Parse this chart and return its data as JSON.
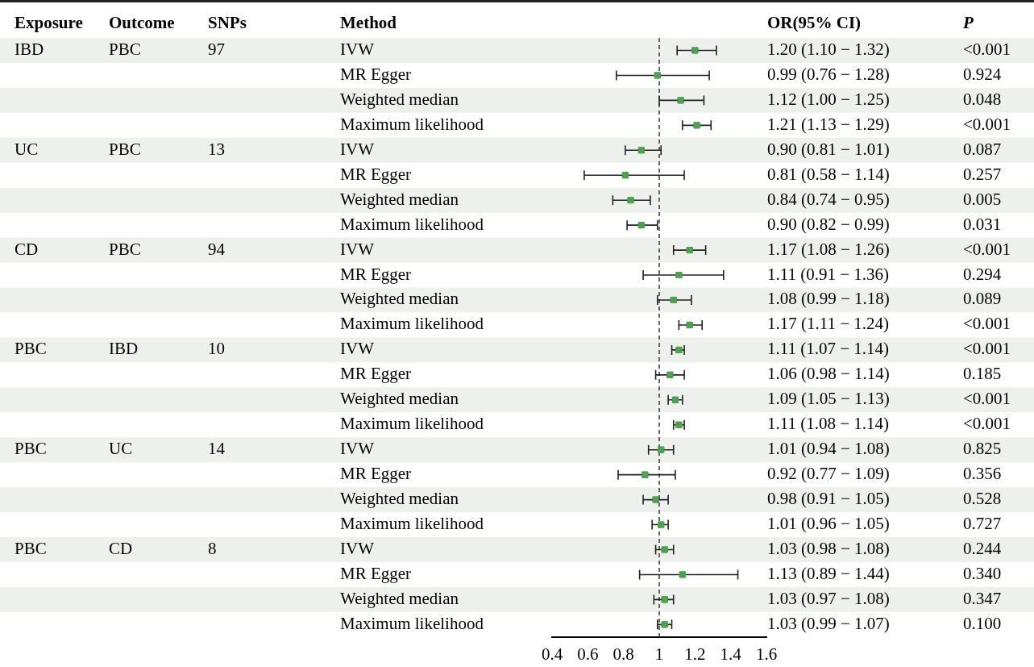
{
  "chart_data": {
    "type": "scatter",
    "orientation": "horizontal",
    "ylabel": "Method",
    "marker": "square",
    "categories": [
      "IVW",
      "MR Egger",
      "Weighted median",
      "Maximum likelihood",
      "IVW",
      "MR Egger",
      "Weighted median",
      "Maximum likelihood",
      "IVW",
      "MR Egger",
      "Weighted median",
      "Maximum likelihood",
      "IVW",
      "MR Egger",
      "Weighted median",
      "Maximum likelihood",
      "IVW",
      "MR Egger",
      "Weighted median",
      "Maximum likelihood",
      "IVW",
      "MR Egger",
      "Weighted median",
      "Maximum likelihood"
    ],
    "series": [
      {
        "color": "#4ea24e",
        "values": [
          1.2,
          0.99,
          1.12,
          1.21,
          0.9,
          0.81,
          0.84,
          0.9,
          1.17,
          1.11,
          1.08,
          1.17,
          1.11,
          1.06,
          1.09,
          1.11,
          1.01,
          0.92,
          0.98,
          1.01,
          1.03,
          1.13,
          1.03,
          1.03
        ],
        "errors": [
          [
            1.1,
            1.32
          ],
          [
            0.76,
            1.28
          ],
          [
            1.0,
            1.25
          ],
          [
            1.13,
            1.29
          ],
          [
            0.81,
            1.01
          ],
          [
            0.58,
            1.14
          ],
          [
            0.74,
            0.95
          ],
          [
            0.82,
            0.99
          ],
          [
            1.08,
            1.26
          ],
          [
            0.91,
            1.36
          ],
          [
            0.99,
            1.18
          ],
          [
            1.11,
            1.24
          ],
          [
            1.07,
            1.14
          ],
          [
            0.98,
            1.14
          ],
          [
            1.05,
            1.13
          ],
          [
            1.08,
            1.14
          ],
          [
            0.94,
            1.08
          ],
          [
            0.77,
            1.09
          ],
          [
            0.91,
            1.05
          ],
          [
            0.96,
            1.05
          ],
          [
            0.98,
            1.08
          ],
          [
            0.89,
            1.44
          ],
          [
            0.97,
            1.08
          ],
          [
            0.99,
            1.07
          ]
        ],
        "value_labels": [
          "1.20 (1.10 − 1.32)",
          "0.99 (0.76 − 1.28)",
          "1.12 (1.00 − 1.25)",
          "1.21 (1.13 − 1.29)",
          "0.90 (0.81 − 1.01)",
          "0.81 (0.58 − 1.14)",
          "0.84 (0.74 − 0.95)",
          "0.90 (0.82 − 0.99)",
          "1.17 (1.08 − 1.26)",
          "1.11 (0.91 − 1.36)",
          "1.08 (0.99 − 1.18)",
          "1.17 (1.11 − 1.24)",
          "1.11 (1.07 − 1.14)",
          "1.06 (0.98 − 1.14)",
          "1.09 (1.05 − 1.13)",
          "1.11 (1.08 − 1.14)",
          "1.01 (0.94 − 1.08)",
          "0.92 (0.77 − 1.09)",
          "0.98 (0.91 − 1.05)",
          "1.01 (0.96 − 1.05)",
          "1.03 (0.98 − 1.08)",
          "1.13 (0.89 − 1.44)",
          "1.03 (0.97 − 1.08)",
          "1.03 (0.99 − 1.07)"
        ]
      }
    ],
    "xlim": [
      0.4,
      1.6
    ],
    "xticks": [
      0.4,
      0.6,
      0.8,
      1,
      1.2,
      1.4,
      1.6
    ],
    "ref_lines": [
      {
        "axis": "x",
        "value": 1,
        "line_style": "dashed",
        "color": "#333333"
      }
    ],
    "annotations": [
      "Exposure",
      "Outcome",
      "SNPs",
      "OR(95% CI)",
      "P",
      "IBD",
      "PBC",
      "97",
      "UC",
      "PBC",
      "13",
      "CD",
      "PBC",
      "94",
      "PBC",
      "IBD",
      "10",
      "PBC",
      "UC",
      "14",
      "PBC",
      "CD",
      "8",
      "<0.001",
      "0.924",
      "0.048",
      "<0.001",
      "0.087",
      "0.257",
      "0.005",
      "0.031",
      "<0.001",
      "0.294",
      "0.089",
      "<0.001",
      "<0.001",
      "0.185",
      "<0.001",
      "<0.001",
      "0.825",
      "0.356",
      "0.528",
      "0.727",
      "0.244",
      "0.340",
      "0.347",
      "0.100"
    ]
  }
}
